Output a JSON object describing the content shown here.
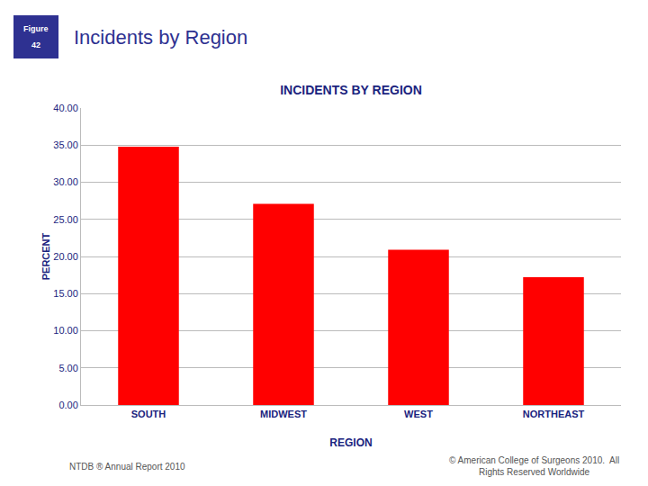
{
  "chart_data": {
    "type": "bar",
    "title": "INCIDENTS BY REGION",
    "xlabel": "REGION",
    "ylabel": "PERCENT",
    "categories": [
      "SOUTH",
      "MIDWEST",
      "WEST",
      "NORTHEAST"
    ],
    "values": [
      34.8,
      27.1,
      20.9,
      17.2
    ],
    "color": "#ff0000",
    "ylim": [
      0,
      40
    ],
    "yticks": [
      {
        "value": 0,
        "label": "0.00"
      },
      {
        "value": 5,
        "label": "5.00"
      },
      {
        "value": 10,
        "label": "10.00"
      },
      {
        "value": 15,
        "label": "15.00"
      },
      {
        "value": 20,
        "label": "20.00"
      },
      {
        "value": 25,
        "label": "25.00"
      },
      {
        "value": 30,
        "label": "30.00"
      },
      {
        "value": 35,
        "label": "35.00"
      },
      {
        "value": 40,
        "label": "40.00"
      }
    ],
    "grid": true,
    "annotations": [
      "Figure",
      "42",
      "Incidents by Region",
      "NTDB ® Annual Report 2010",
      "© American College of Surgeons 2010.  All\nRights Reserved Worldwide"
    ]
  }
}
